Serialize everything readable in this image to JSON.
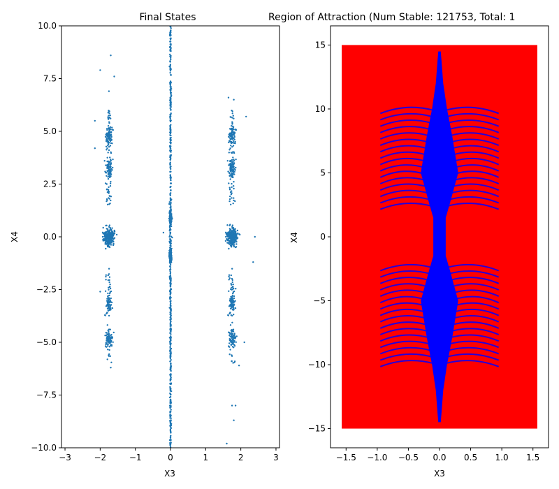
{
  "chart_data": [
    {
      "type": "scatter",
      "title": "Final States",
      "xlabel": "X3",
      "ylabel": "X4",
      "xlim": [
        -3.1,
        3.1
      ],
      "ylim": [
        -10,
        10
      ],
      "xticks": [
        -3,
        -2,
        -1,
        0,
        1,
        2,
        3
      ],
      "yticks": [
        -10.0,
        -7.5,
        -5.0,
        -2.5,
        0.0,
        2.5,
        5.0,
        7.5,
        10.0
      ],
      "xtick_labels": [
        "−3",
        "−2",
        "−1",
        "0",
        "1",
        "2",
        "3"
      ],
      "ytick_labels": [
        "−10.0",
        "−7.5",
        "−5.0",
        "−2.5",
        "0.0",
        "2.5",
        "5.0",
        "7.5",
        "10.0"
      ],
      "grid": false,
      "series": [
        {
          "color": "#1f77b4",
          "clusters": [
            {
              "x_center": 0.0,
              "x_spread": 0.04,
              "y_range": [
                -10,
                10
              ],
              "count": 900
            },
            {
              "x_center": -1.75,
              "x_spread": 0.25,
              "y_range": [
                -6.2,
                8.6
              ],
              "count": 650
            },
            {
              "x_center": 1.75,
              "x_spread": 0.25,
              "y_range": [
                -9.8,
                6.6
              ],
              "count": 650
            }
          ],
          "points": [
            {
              "x": -1.7,
              "y": 8.6
            },
            {
              "x": -2.0,
              "y": 7.9
            },
            {
              "x": -1.6,
              "y": 7.6
            },
            {
              "x": -1.75,
              "y": 6.9
            },
            {
              "x": 1.65,
              "y": 6.6
            },
            {
              "x": 1.8,
              "y": 6.5
            },
            {
              "x": 2.15,
              "y": 5.7
            },
            {
              "x": -2.15,
              "y": 5.5
            },
            {
              "x": -2.15,
              "y": 4.2
            },
            {
              "x": -0.2,
              "y": 0.2
            },
            {
              "x": 2.4,
              "y": 0.0
            },
            {
              "x": 2.35,
              "y": -1.2
            },
            {
              "x": -2.0,
              "y": -2.6
            },
            {
              "x": 2.1,
              "y": -5.0
            },
            {
              "x": 1.95,
              "y": -6.1
            },
            {
              "x": -1.7,
              "y": -6.2
            },
            {
              "x": 1.75,
              "y": -8.0
            },
            {
              "x": 1.85,
              "y": -8.0
            },
            {
              "x": 1.8,
              "y": -8.7
            },
            {
              "x": 1.6,
              "y": -9.8
            }
          ]
        }
      ]
    },
    {
      "type": "scatter",
      "title": "Region of Attraction (Num Stable: 121753, Total: 1",
      "xlabel": "X3",
      "ylabel": "X4",
      "xlim": [
        -1.75,
        1.75
      ],
      "ylim": [
        -16.5,
        16.5
      ],
      "xticks": [
        -1.5,
        -1.0,
        -0.5,
        0.0,
        0.5,
        1.0,
        1.5
      ],
      "yticks": [
        -15,
        -10,
        -5,
        0,
        5,
        10,
        15
      ],
      "xtick_labels": [
        "−1.5",
        "−1.0",
        "−0.5",
        "0.0",
        "0.5",
        "1.0",
        "1.5"
      ],
      "ytick_labels": [
        "−15",
        "−10",
        "−5",
        "0",
        "5",
        "10",
        "15"
      ],
      "grid": false,
      "num_stable": 121753,
      "series": [
        {
          "color": "#ff0000",
          "region": {
            "x": [
              -1.57,
              1.57
            ],
            "y": [
              -15,
              15
            ]
          }
        },
        {
          "color": "#0000ff",
          "core": {
            "half_width_at_y": [
              [
                0,
                0.1
              ],
              [
                1.5,
                0.1
              ],
              [
                2.5,
                0.16
              ],
              [
                5,
                0.3
              ],
              [
                8,
                0.2
              ],
              [
                10,
                0.12
              ],
              [
                12,
                0.06
              ],
              [
                14.5,
                0.02
              ]
            ]
          },
          "arms": {
            "y_start": [
              2.4,
              2.9,
              3.4,
              3.9,
              4.4,
              4.9,
              5.4,
              5.9,
              6.4,
              6.9,
              7.4,
              7.9,
              8.4,
              8.9,
              9.4,
              9.9
            ],
            "x_reach": 0.95
          }
        }
      ]
    }
  ]
}
